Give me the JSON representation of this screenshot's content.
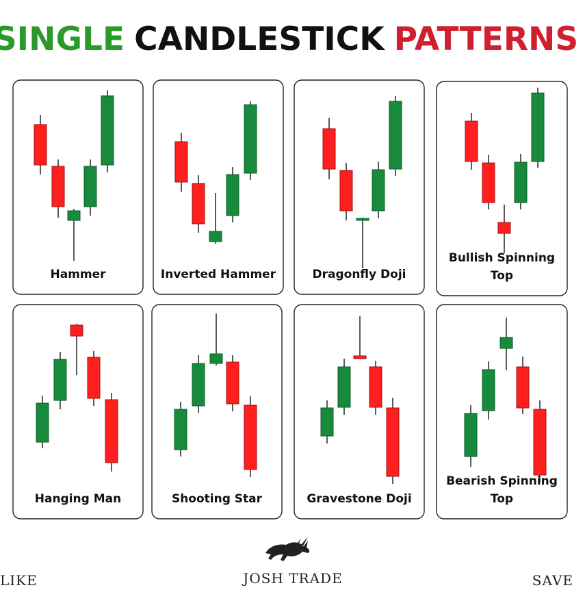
{
  "header": {
    "title": [
      "SINGLE",
      "CANDLESTICK",
      "PATTERNS"
    ]
  },
  "cards": [
    {
      "label": [
        "Hammer"
      ]
    },
    {
      "label": [
        "Inverted Hammer"
      ]
    },
    {
      "label": [
        "Dragonfly Doji"
      ]
    },
    {
      "label": [
        "Bullish Spinning",
        "Top"
      ]
    },
    {
      "label": [
        "Hanging Man"
      ]
    },
    {
      "label": [
        "Shooting Star"
      ]
    },
    {
      "label": [
        "Gravestone Doji"
      ]
    },
    {
      "label": [
        "Bearish Spinning",
        "Top"
      ]
    }
  ],
  "footer": {
    "left": "LIKE",
    "brand": "JOSH TRADE",
    "right": "SAVE"
  }
}
